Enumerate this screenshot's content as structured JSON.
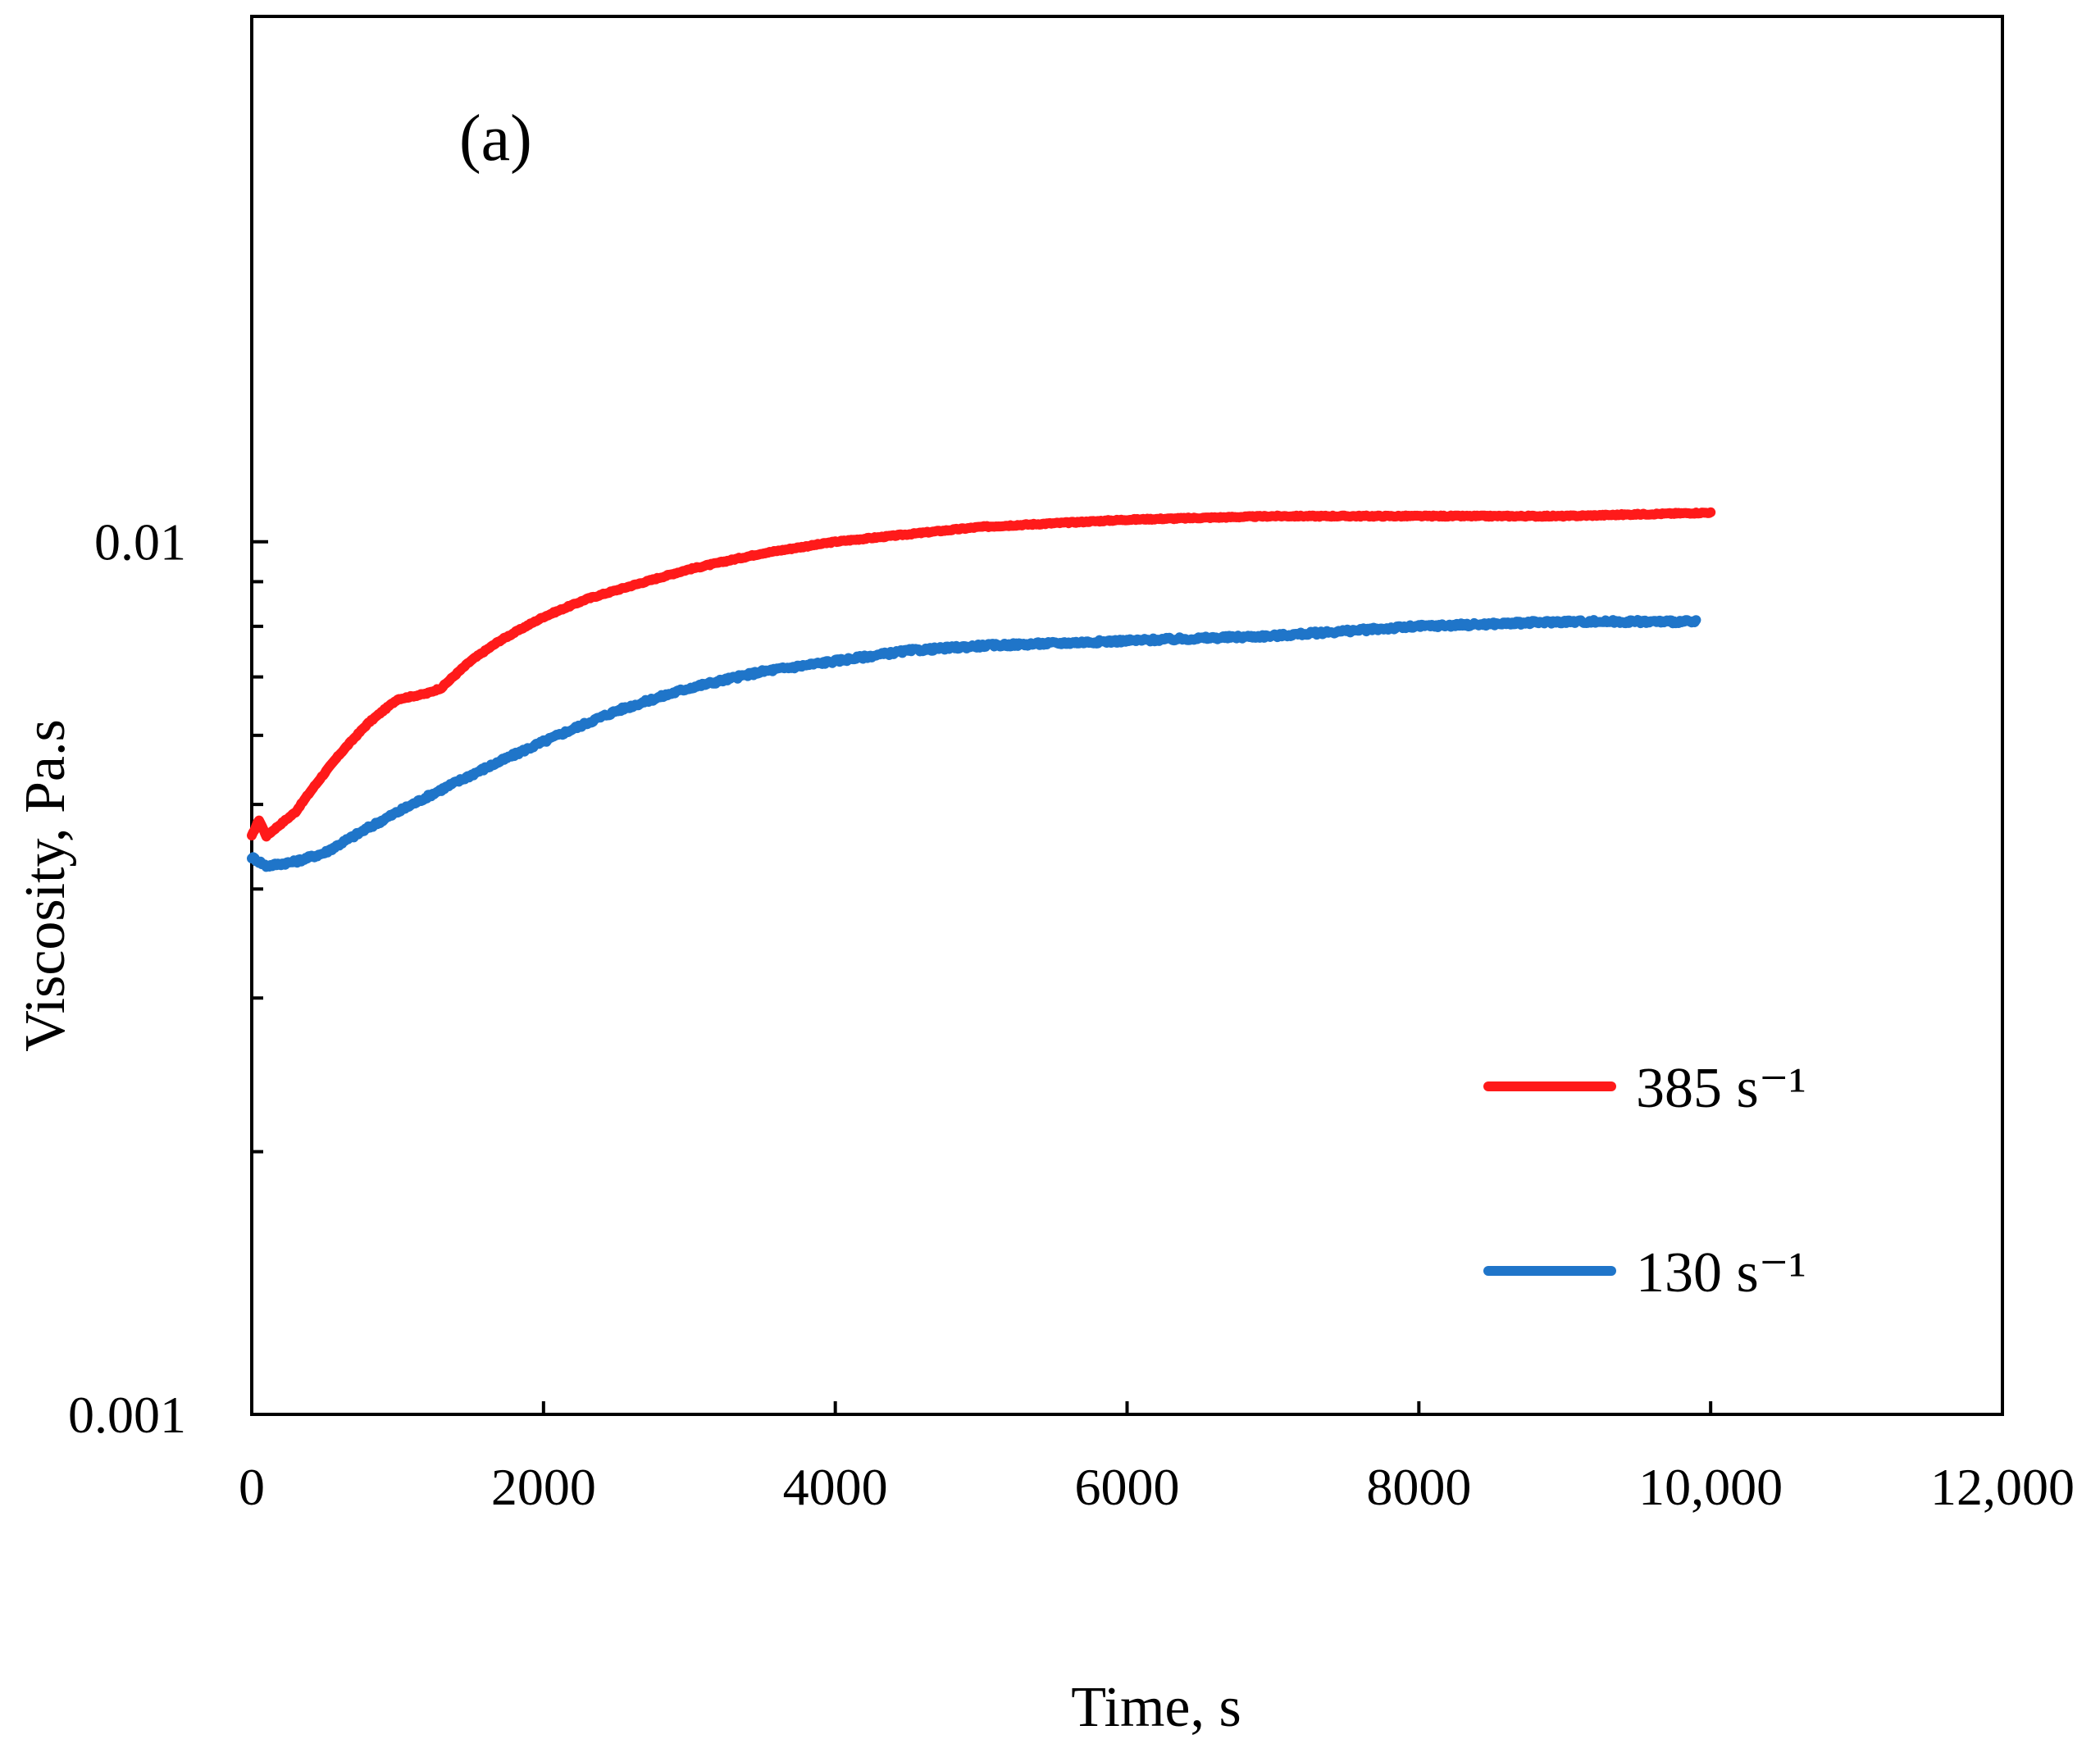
{
  "chart_data": {
    "type": "line",
    "panel_label": "(a)",
    "xlabel": "Time, s",
    "ylabel": "Viscosity, Pa.s",
    "x_scale": "linear",
    "y_scale": "log",
    "xlim": [
      0,
      12000
    ],
    "ylim": [
      0.001,
      0.04
    ],
    "x_ticks": [
      0,
      2000,
      4000,
      6000,
      8000,
      10000,
      12000
    ],
    "x_tick_labels": [
      "0",
      "2000",
      "4000",
      "6000",
      "8000",
      "10,000",
      "12,000"
    ],
    "y_ticks": [
      0.001,
      0.01
    ],
    "y_tick_labels": [
      "0.001",
      "0.01"
    ],
    "y_minor_ticks": [
      0.002,
      0.003,
      0.004,
      0.005,
      0.006,
      0.007,
      0.008,
      0.009
    ],
    "grid": false,
    "legend_position": "lower-right",
    "series": [
      {
        "name": "385 s⁻¹",
        "color": "#ff1a1a",
        "x": [
          0,
          50,
          100,
          300,
          600,
          800,
          1000,
          1200,
          1300,
          1500,
          1700,
          2000,
          2300,
          2600,
          3000,
          3500,
          4000,
          4500,
          5000,
          5500,
          6000,
          7000,
          8000,
          9000,
          10000
        ],
        "values": [
          0.0046,
          0.0048,
          0.0046,
          0.0049,
          0.0057,
          0.0062,
          0.0066,
          0.0067,
          0.0068,
          0.0073,
          0.0077,
          0.0082,
          0.0086,
          0.0089,
          0.0093,
          0.0097,
          0.01,
          0.0102,
          0.0104,
          0.0105,
          0.0106,
          0.0107,
          0.0107,
          0.0107,
          0.0108
        ]
      },
      {
        "name": "130 s⁻¹",
        "color": "#1f75c9",
        "x": [
          0,
          50,
          100,
          300,
          500,
          700,
          1000,
          1300,
          1600,
          2000,
          2500,
          3000,
          3500,
          4000,
          4500,
          5000,
          6000,
          7000,
          8000,
          9000,
          9900
        ],
        "values": [
          0.00435,
          0.0043,
          0.00425,
          0.0043,
          0.0044,
          0.0046,
          0.0049,
          0.0052,
          0.0055,
          0.0059,
          0.0064,
          0.0068,
          0.0071,
          0.0073,
          0.0075,
          0.0076,
          0.0077,
          0.0078,
          0.008,
          0.0081,
          0.0081
        ]
      }
    ]
  }
}
